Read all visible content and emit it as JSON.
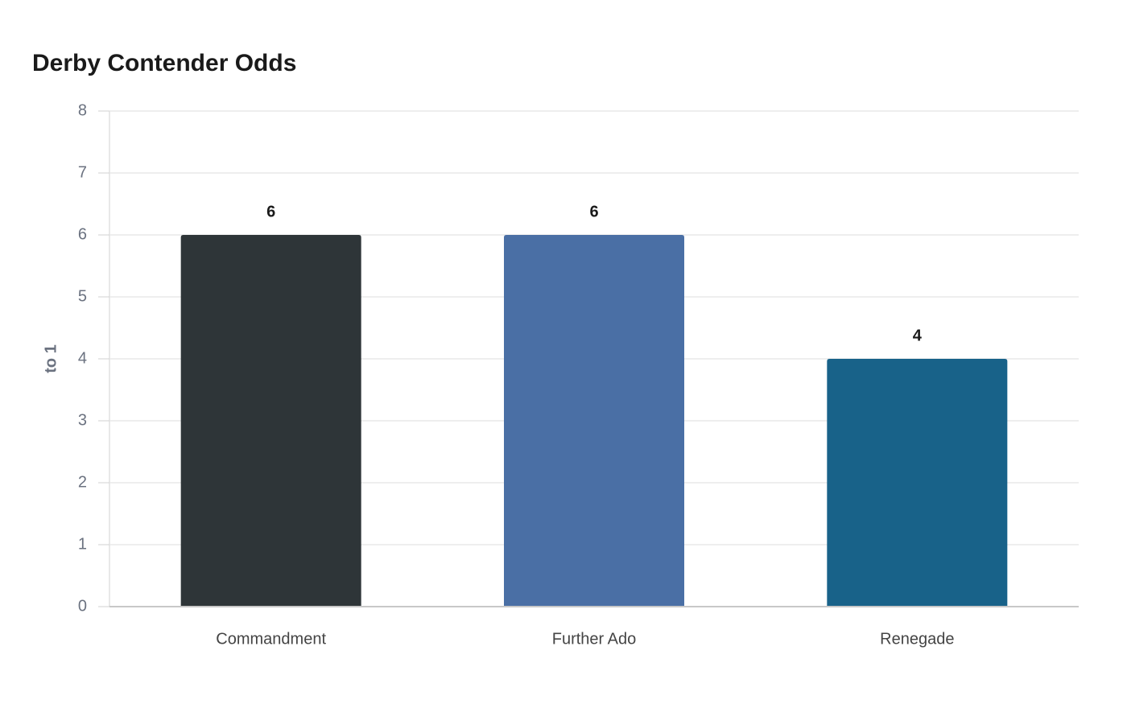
{
  "chart_data": {
    "type": "bar",
    "title": "Derby Contender Odds",
    "y_label": "to 1",
    "categories": [
      "Commandment",
      "Further Ado",
      "Renegade"
    ],
    "values": [
      6,
      6,
      4
    ],
    "colors": [
      "#2e3538",
      "#4a6fa5",
      "#186289"
    ],
    "ylim": [
      0,
      8
    ],
    "yticks": [
      0,
      1,
      2,
      3,
      4,
      5,
      6,
      7,
      8
    ],
    "grid": true
  }
}
